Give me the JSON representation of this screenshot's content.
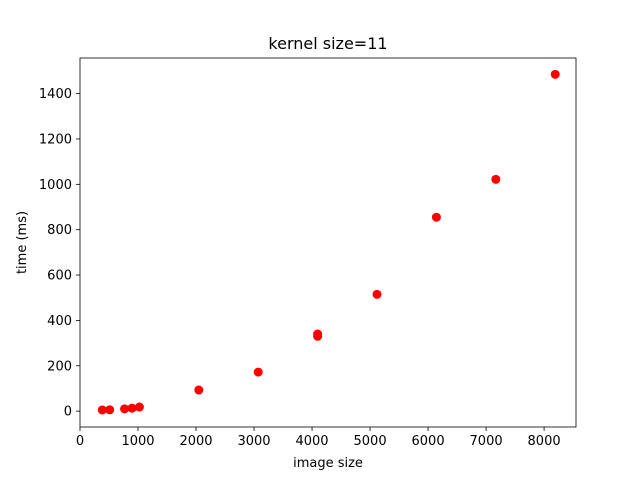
{
  "chart_data": {
    "type": "scatter",
    "title": "kernel size=11",
    "xlabel": "image size",
    "ylabel": "time (ms)",
    "xlim": [
      0,
      8550
    ],
    "ylim": [
      -70,
      1557
    ],
    "xticks": [
      0,
      1000,
      2000,
      3000,
      4000,
      5000,
      6000,
      7000,
      8000
    ],
    "yticks": [
      0,
      200,
      400,
      600,
      800,
      1000,
      1200,
      1400
    ],
    "grid": false,
    "marker_color": "#ff0000",
    "series": [
      {
        "x": [
          384,
          512,
          768,
          896,
          1024,
          2048,
          3072,
          4096,
          4096,
          5120,
          6144,
          7168,
          8192
        ],
        "y": [
          5,
          6,
          10,
          13,
          18,
          93,
          172,
          330,
          340,
          515,
          855,
          1022,
          1485
        ]
      }
    ]
  }
}
